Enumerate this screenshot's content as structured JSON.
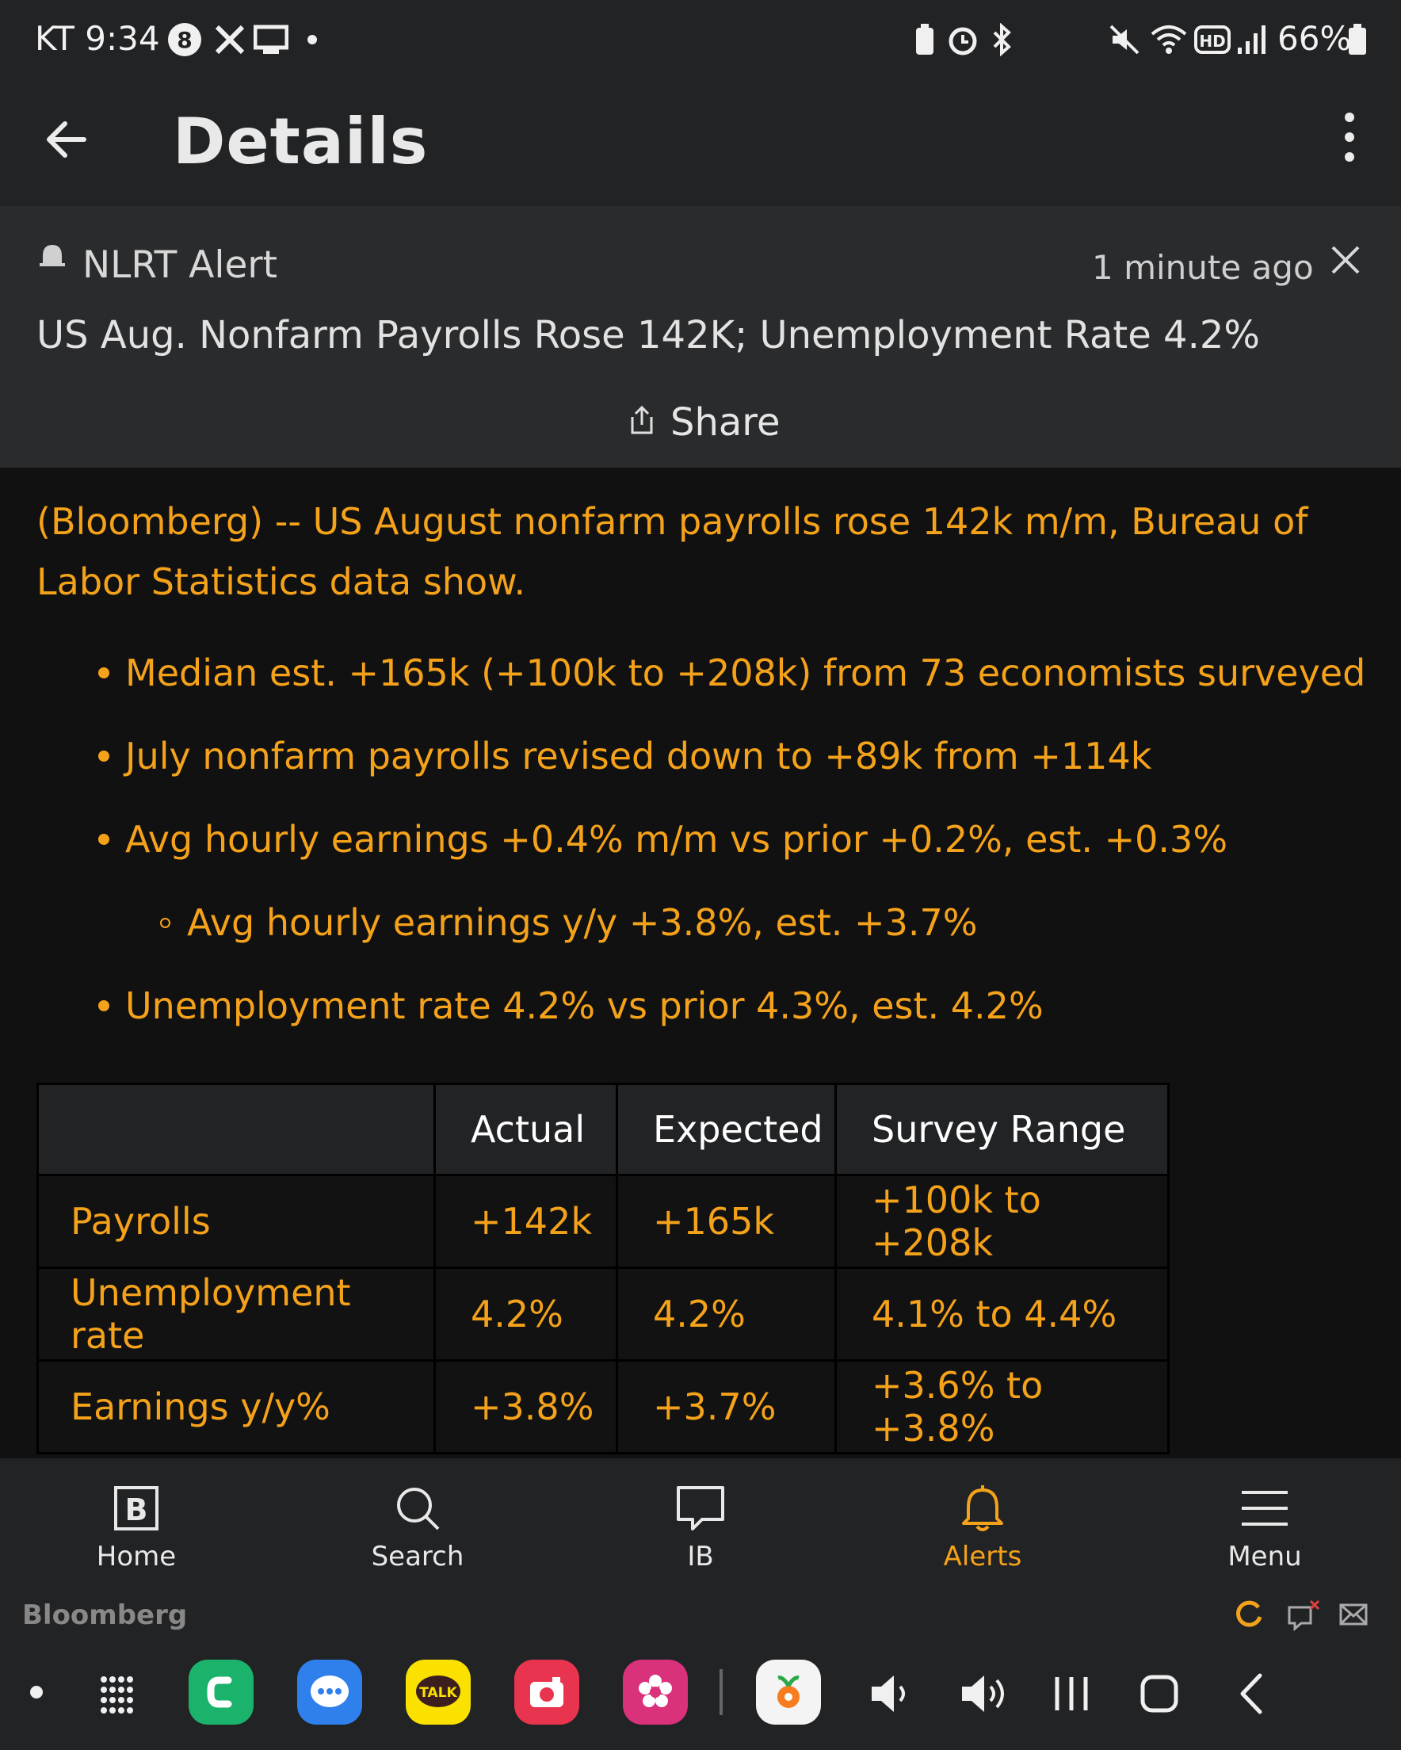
{
  "status_bar": {
    "carrier_time": "KT 9:34",
    "battery": "66%"
  },
  "header": {
    "title": "Details"
  },
  "alert": {
    "name": "NLRT Alert",
    "time": "1 minute ago",
    "headline": "US Aug. Nonfarm Payrolls Rose 142K; Unemployment Rate 4.2%",
    "share_label": "Share"
  },
  "story": {
    "lede": "(Bloomberg) -- US August nonfarm payrolls rose 142k m/m, Bureau of Labor Statistics data show.",
    "bullets": [
      "Median est. +165k (+100k to +208k) from 73 economists surveyed",
      "July nonfarm payrolls revised down to +89k from +114k",
      "Avg hourly earnings +0.4% m/m vs prior +0.2%, est. +0.3%",
      "Avg hourly earnings y/y +3.8%, est. +3.7%",
      "Unemployment rate 4.2% vs prior 4.3%, est. 4.2%"
    ]
  },
  "table": {
    "headers": [
      "",
      "Actual",
      "Expected",
      "Survey Range"
    ],
    "rows": [
      [
        "Payrolls",
        "+142k",
        "+165k",
        "+100k to +208k"
      ],
      [
        "Unemployment rate",
        "4.2%",
        "4.2%",
        "4.1% to 4.4%"
      ],
      [
        "Earnings y/y%",
        "+3.8%",
        "+3.7%",
        "+3.6% to +3.8%"
      ]
    ]
  },
  "bottom_nav": {
    "home": "Home",
    "search": "Search",
    "ib": "IB",
    "alerts": "Alerts",
    "menu": "Menu"
  },
  "brand": "Bloomberg",
  "colors": {
    "accent": "#f5a21b",
    "background": "#111111",
    "header_bg": "#222325",
    "card_bg": "#2a2b2d"
  },
  "icons": {
    "status_bar": [
      "b-notification-icon",
      "x-icon",
      "cast-icon",
      "battery-saver-icon",
      "alarm-icon",
      "bluetooth-icon",
      "mute-icon",
      "wifi-icon",
      "hd-icon",
      "signal-icon",
      "battery-icon"
    ],
    "dock_apps": [
      "phone-app-icon",
      "messages-app-icon",
      "kakaotalk-app-icon",
      "camera-app-icon",
      "flower-app-icon",
      "carrot-app-icon"
    ]
  }
}
